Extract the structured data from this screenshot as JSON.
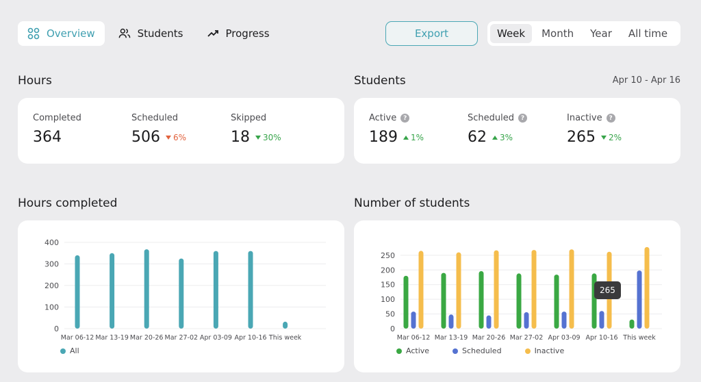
{
  "nav": {
    "tabs": [
      {
        "label": "Overview",
        "icon": "grid-icon",
        "active": true
      },
      {
        "label": "Students",
        "icon": "users-icon",
        "active": false
      },
      {
        "label": "Progress",
        "icon": "trending-up-icon",
        "active": false
      }
    ],
    "export_label": "Export",
    "ranges": [
      {
        "label": "Week",
        "active": true
      },
      {
        "label": "Month",
        "active": false
      },
      {
        "label": "Year",
        "active": false
      },
      {
        "label": "All time",
        "active": false
      }
    ]
  },
  "hours": {
    "title": "Hours",
    "stats": [
      {
        "label": "Completed",
        "value": "364",
        "delta": "",
        "direction": ""
      },
      {
        "label": "Scheduled",
        "value": "506",
        "delta": "6%",
        "direction": "down"
      },
      {
        "label": "Skipped",
        "value": "18",
        "delta": "30%",
        "direction": "down-good"
      }
    ]
  },
  "students": {
    "title": "Students",
    "date_range": "Apr 10 - Apr 16",
    "stats": [
      {
        "label": "Active",
        "value": "189",
        "delta": "1%",
        "direction": "up"
      },
      {
        "label": "Scheduled",
        "value": "62",
        "delta": "3%",
        "direction": "up"
      },
      {
        "label": "Inactive",
        "value": "265",
        "delta": "2%",
        "direction": "down-good"
      }
    ]
  },
  "hours_chart": {
    "title": "Hours completed"
  },
  "students_chart": {
    "title": "Number of students",
    "tooltip": "265"
  },
  "colors": {
    "accent": "#4aa7b4",
    "active": "#3aa843",
    "scheduled": "#5572d1",
    "inactive": "#f5bd4c"
  },
  "chart_data": [
    {
      "type": "bar",
      "categories": [
        "Mar 06-12",
        "Mar 13-19",
        "Mar 20-26",
        "Mar 27-02",
        "Apr 03-09",
        "Apr 10-16",
        "This week"
      ],
      "yticks": [
        0,
        100,
        200,
        300,
        400
      ],
      "ylim": [
        0,
        400
      ],
      "grid": true,
      "legend": "bottom-left",
      "series": [
        {
          "name": "All",
          "color": "#4aa7b4",
          "values": [
            340,
            350,
            368,
            325,
            360,
            360,
            32
          ]
        }
      ]
    },
    {
      "type": "bar",
      "categories": [
        "Mar 06-12",
        "Mar 13-19",
        "Mar 20-26",
        "Mar 27-02",
        "Apr 03-09",
        "Apr 10-16",
        "This week"
      ],
      "yticks": [
        0,
        50,
        100,
        150,
        200,
        250
      ],
      "ylim": [
        0,
        280
      ],
      "grid": true,
      "legend": "bottom-left",
      "series": [
        {
          "name": "Active",
          "color": "#3aa843",
          "values": [
            180,
            190,
            196,
            188,
            184,
            188,
            31
          ]
        },
        {
          "name": "Scheduled",
          "color": "#5572d1",
          "values": [
            58,
            48,
            45,
            56,
            58,
            60,
            198
          ]
        },
        {
          "name": "Inactive",
          "color": "#f5bd4c",
          "values": [
            265,
            260,
            267,
            268,
            270,
            262,
            278
          ]
        }
      ]
    }
  ]
}
